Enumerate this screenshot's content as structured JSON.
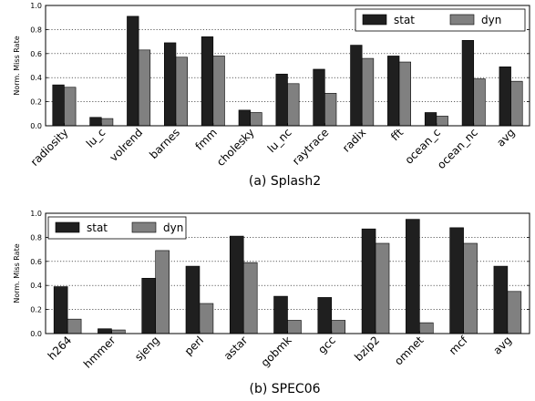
{
  "chart_data": [
    {
      "type": "bar",
      "title": "(a) Splash2",
      "ylabel": "Norm. Miss Rate",
      "xlabel": "",
      "ylim": [
        0,
        1.0
      ],
      "yticks": [
        "0.0",
        "0.2",
        "0.4",
        "0.6",
        "0.8",
        "1.0"
      ],
      "grid": "horizontal dotted",
      "legend_position": "top-right",
      "categories": [
        "radiosity",
        "lu_c",
        "volrend",
        "barnes",
        "fmm",
        "cholesky",
        "lu_nc",
        "raytrace",
        "radix",
        "fft",
        "ocean_c",
        "ocean_nc",
        "avg"
      ],
      "series": [
        {
          "name": "stat",
          "color": "#1f1f1f",
          "values": [
            0.34,
            0.07,
            0.91,
            0.69,
            0.74,
            0.13,
            0.43,
            0.47,
            0.67,
            0.58,
            0.11,
            0.71,
            0.49
          ]
        },
        {
          "name": "dyn",
          "color": "#808080",
          "values": [
            0.32,
            0.06,
            0.63,
            0.57,
            0.58,
            0.11,
            0.35,
            0.27,
            0.56,
            0.53,
            0.08,
            0.39,
            0.37
          ]
        }
      ]
    },
    {
      "type": "bar",
      "title": "(b) SPEC06",
      "ylabel": "Norm. Miss Rate",
      "xlabel": "",
      "ylim": [
        0,
        1.0
      ],
      "yticks": [
        "0.0",
        "0.2",
        "0.4",
        "0.6",
        "0.8",
        "1.0"
      ],
      "grid": "horizontal dotted",
      "legend_position": "top-left",
      "categories": [
        "h264",
        "hmmer",
        "sjeng",
        "perl",
        "astar",
        "gobmk",
        "gcc",
        "bzip2",
        "omnet",
        "mcf",
        "avg"
      ],
      "series": [
        {
          "name": "stat",
          "color": "#1f1f1f",
          "values": [
            0.39,
            0.04,
            0.46,
            0.56,
            0.81,
            0.31,
            0.3,
            0.87,
            0.95,
            0.88,
            0.56
          ]
        },
        {
          "name": "dyn",
          "color": "#808080",
          "values": [
            0.12,
            0.03,
            0.69,
            0.25,
            0.59,
            0.11,
            0.11,
            0.75,
            0.09,
            0.75,
            0.35
          ]
        }
      ]
    }
  ]
}
